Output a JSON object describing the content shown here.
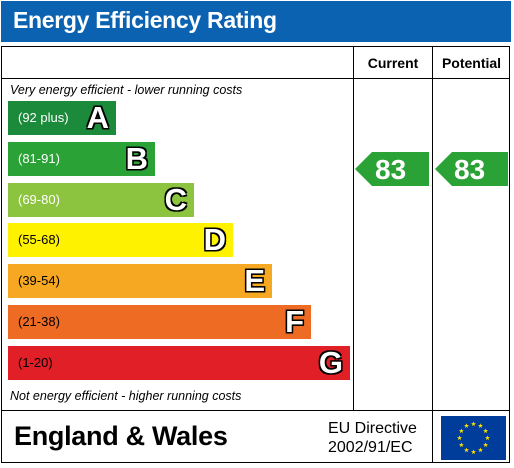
{
  "header": {
    "title": "Energy Efficiency Rating"
  },
  "columns": {
    "current": "Current",
    "potential": "Potential"
  },
  "captions": {
    "top": "Very energy efficient - lower running costs",
    "bottom": "Not energy efficient - higher running costs"
  },
  "bands": [
    {
      "letter": "A",
      "range": "(92 plus)",
      "color": "#1b8a3b"
    },
    {
      "letter": "B",
      "range": "(81-91)",
      "color": "#2aa235"
    },
    {
      "letter": "C",
      "range": "(69-80)",
      "color": "#8dc43f"
    },
    {
      "letter": "D",
      "range": "(55-68)",
      "color": "#fff200"
    },
    {
      "letter": "E",
      "range": "(39-54)",
      "color": "#f7a823"
    },
    {
      "letter": "F",
      "range": "(21-38)",
      "color": "#ed6b23"
    },
    {
      "letter": "G",
      "range": "(1-20)",
      "color": "#e01f26"
    }
  ],
  "ratings": {
    "current": {
      "value": "83",
      "band": "B",
      "color": "#2aa235"
    },
    "potential": {
      "value": "83",
      "band": "B",
      "color": "#2aa235"
    }
  },
  "footer": {
    "country": "England & Wales",
    "directive_line1": "EU Directive",
    "directive_line2": "2002/91/EC"
  },
  "colors": {
    "brand_blue": "#0a62b0",
    "eu_flag": "#003d9b",
    "eu_star": "#ffdd00"
  }
}
